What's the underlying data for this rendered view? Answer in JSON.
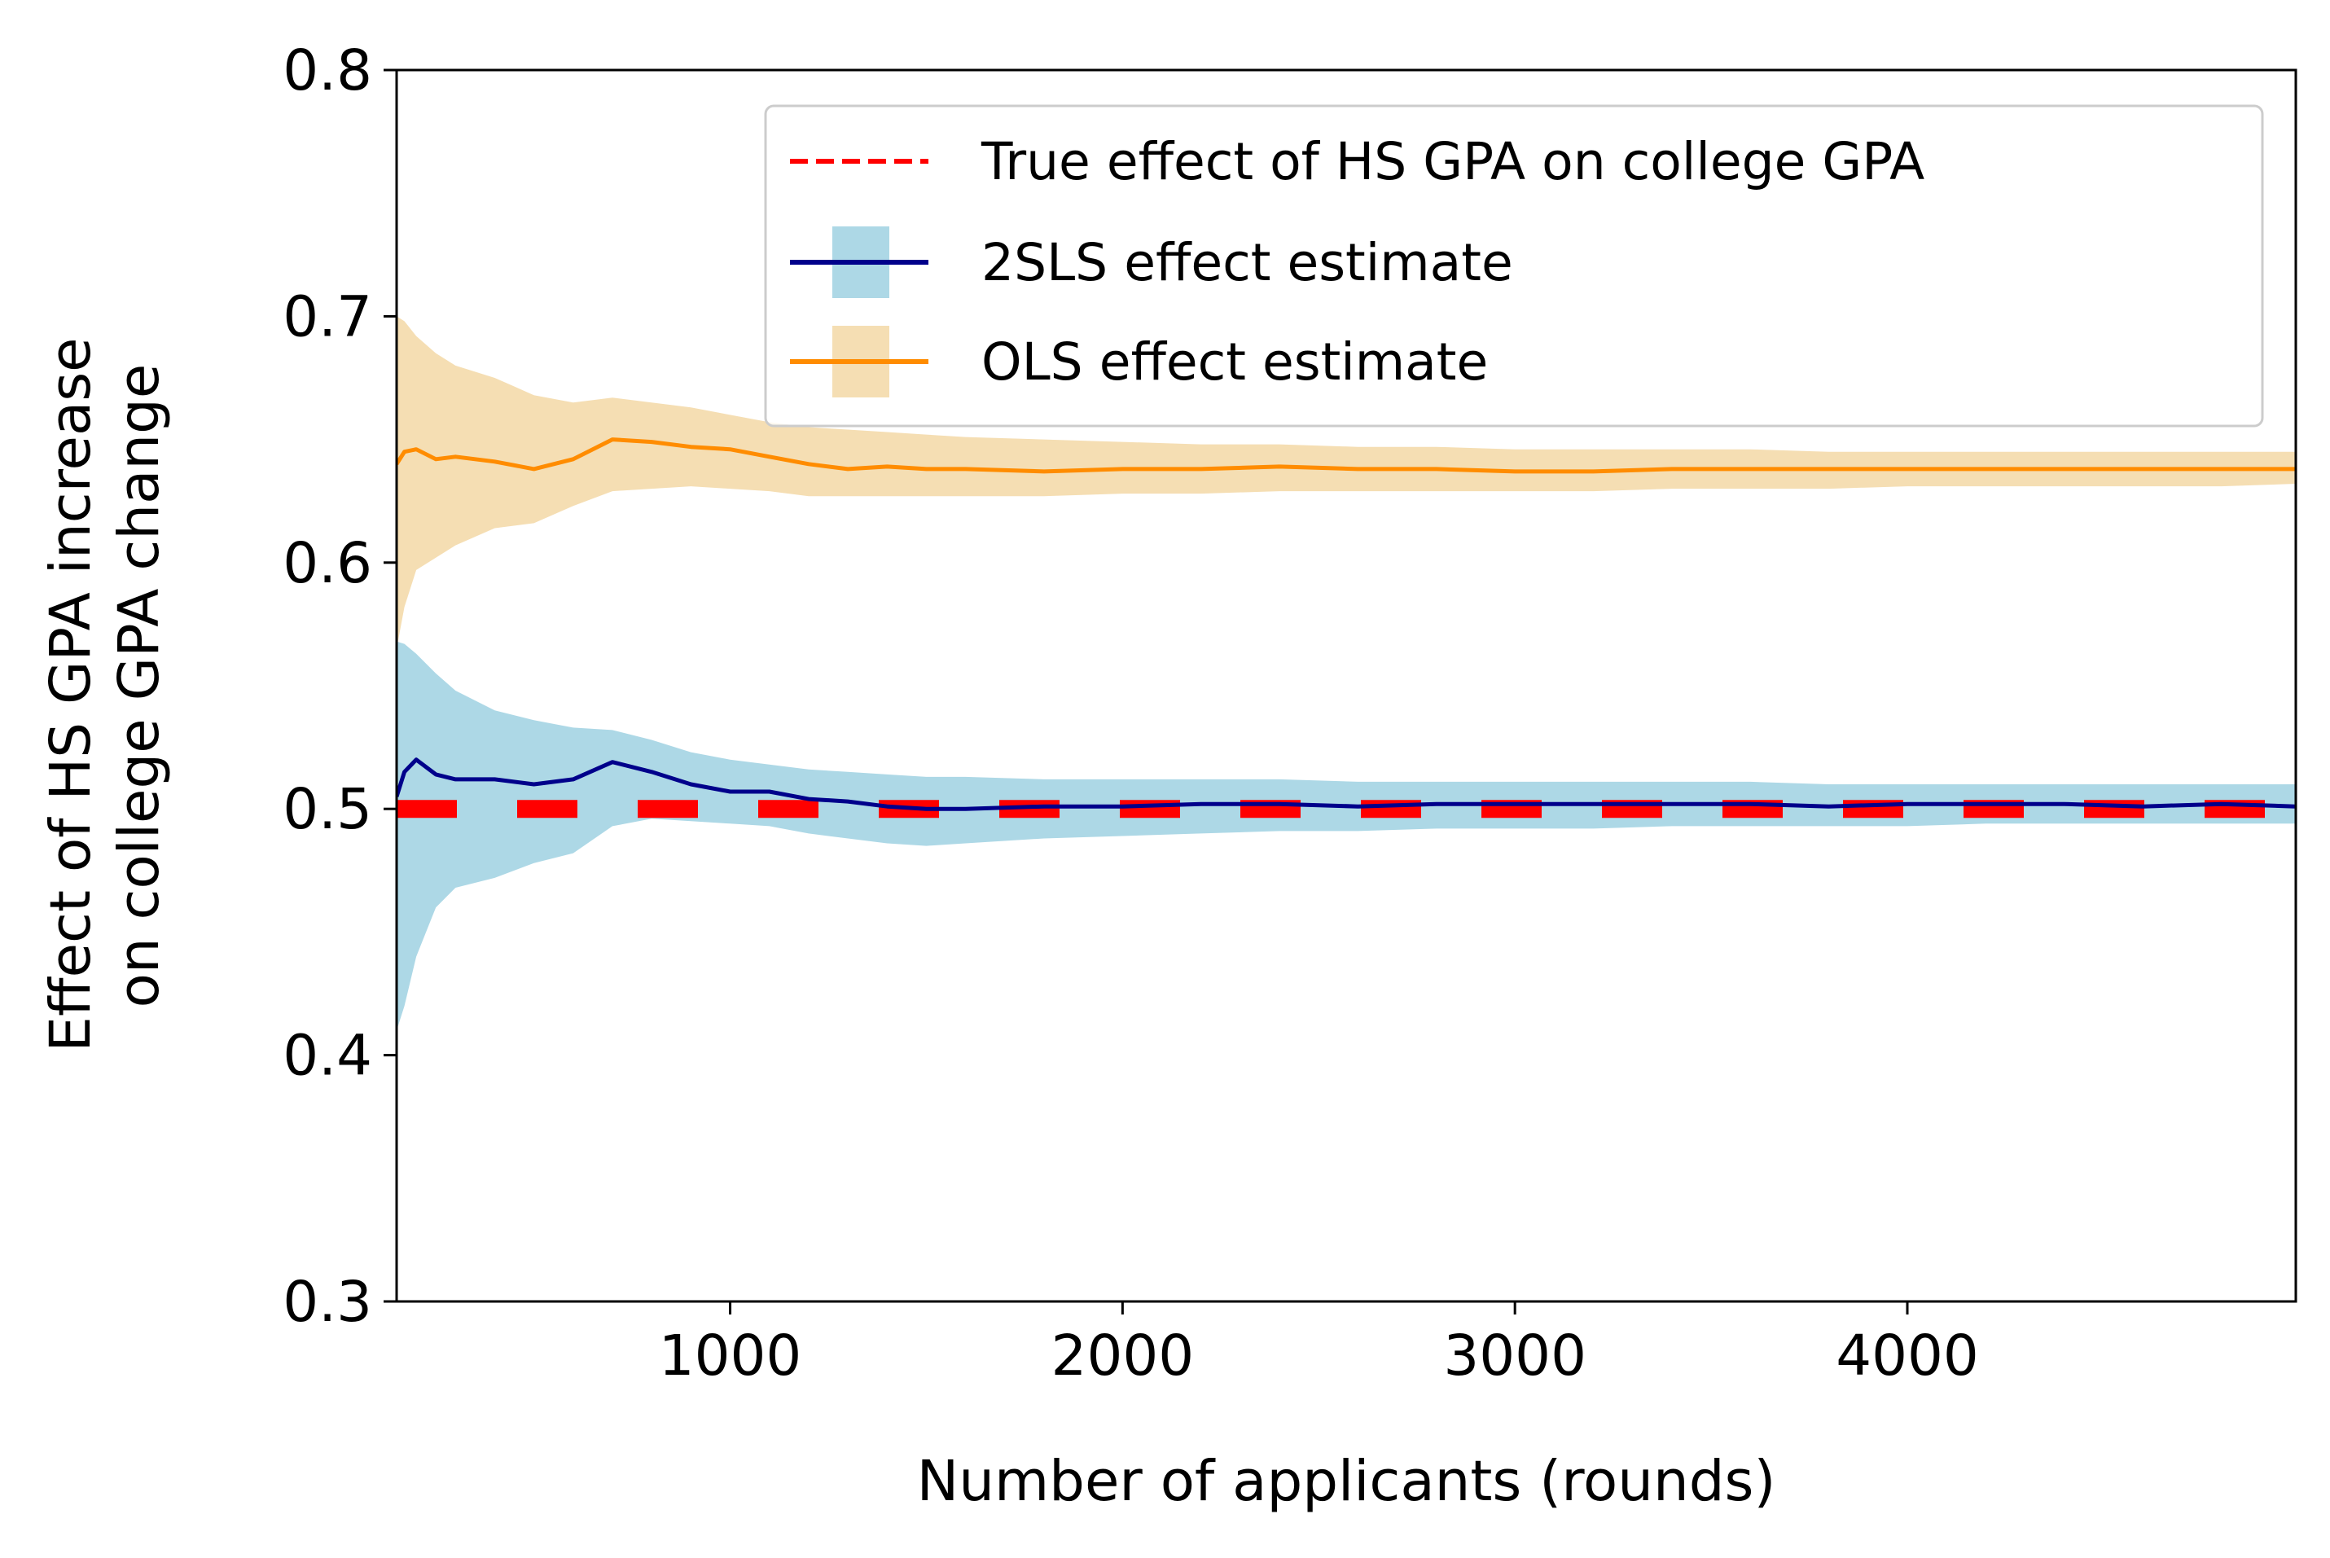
{
  "chart_data": {
    "type": "line",
    "title": "",
    "xlabel": "Number of applicants (rounds)",
    "ylabel": [
      "Effect of HS GPA increase",
      "on college GPA change"
    ],
    "xlim": [
      150,
      4990
    ],
    "ylim": [
      0.3,
      0.8
    ],
    "xticks": [
      1000,
      2000,
      3000,
      4000
    ],
    "yticks": [
      0.3,
      0.4,
      0.5,
      0.6,
      0.7,
      0.8
    ],
    "xtick_labels": [
      "1000",
      "2000",
      "3000",
      "4000"
    ],
    "ytick_labels": [
      "0.3",
      "0.4",
      "0.5",
      "0.6",
      "0.7",
      "0.8"
    ],
    "grid": false,
    "legend_position": "top-right",
    "legend": [
      "True effect of HS GPA on college GPA",
      "2SLS effect estimate",
      "OLS effect estimate"
    ],
    "reference_line": {
      "name": "True effect of HS GPA on college GPA",
      "value": 0.5,
      "style": "dashed",
      "color": "#ff0000"
    },
    "series": [
      {
        "name": "OLS effect estimate",
        "color": "#ff8c00",
        "band_color": "#f5deb3",
        "x": [
          150,
          170,
          200,
          250,
          300,
          400,
          500,
          600,
          700,
          800,
          900,
          1000,
          1100,
          1200,
          1300,
          1400,
          1500,
          1600,
          1800,
          2000,
          2200,
          2400,
          2600,
          2800,
          3000,
          3200,
          3400,
          3600,
          3800,
          4000,
          4200,
          4400,
          4600,
          4800,
          4990
        ],
        "values": [
          0.64,
          0.645,
          0.646,
          0.642,
          0.643,
          0.641,
          0.638,
          0.642,
          0.65,
          0.649,
          0.647,
          0.646,
          0.643,
          0.64,
          0.638,
          0.639,
          0.638,
          0.638,
          0.637,
          0.638,
          0.638,
          0.639,
          0.638,
          0.638,
          0.637,
          0.637,
          0.638,
          0.638,
          0.638,
          0.638,
          0.638,
          0.638,
          0.638,
          0.638,
          0.638
        ],
        "upper": [
          0.7,
          0.698,
          0.692,
          0.685,
          0.68,
          0.675,
          0.668,
          0.665,
          0.667,
          0.665,
          0.663,
          0.66,
          0.657,
          0.655,
          0.654,
          0.653,
          0.652,
          0.651,
          0.65,
          0.649,
          0.648,
          0.648,
          0.647,
          0.647,
          0.646,
          0.646,
          0.646,
          0.646,
          0.645,
          0.645,
          0.645,
          0.645,
          0.645,
          0.645,
          0.645
        ],
        "lower": [
          0.565,
          0.582,
          0.597,
          0.602,
          0.607,
          0.614,
          0.616,
          0.623,
          0.629,
          0.63,
          0.631,
          0.63,
          0.629,
          0.627,
          0.627,
          0.627,
          0.627,
          0.627,
          0.627,
          0.628,
          0.628,
          0.629,
          0.629,
          0.629,
          0.629,
          0.629,
          0.63,
          0.63,
          0.63,
          0.631,
          0.631,
          0.631,
          0.631,
          0.631,
          0.632
        ]
      },
      {
        "name": "2SLS effect estimate",
        "color": "#00008b",
        "band_color": "#add8e6",
        "x": [
          150,
          170,
          200,
          250,
          300,
          400,
          500,
          600,
          700,
          800,
          900,
          1000,
          1100,
          1200,
          1300,
          1400,
          1500,
          1600,
          1800,
          2000,
          2200,
          2400,
          2600,
          2800,
          3000,
          3200,
          3400,
          3600,
          3800,
          4000,
          4200,
          4400,
          4600,
          4800,
          4990
        ],
        "values": [
          0.505,
          0.515,
          0.52,
          0.514,
          0.512,
          0.512,
          0.51,
          0.512,
          0.519,
          0.515,
          0.51,
          0.507,
          0.507,
          0.504,
          0.503,
          0.501,
          0.5,
          0.5,
          0.501,
          0.501,
          0.502,
          0.502,
          0.501,
          0.502,
          0.502,
          0.502,
          0.502,
          0.502,
          0.501,
          0.502,
          0.502,
          0.502,
          0.501,
          0.502,
          0.501
        ],
        "upper": [
          0.568,
          0.567,
          0.563,
          0.555,
          0.548,
          0.54,
          0.536,
          0.533,
          0.532,
          0.528,
          0.523,
          0.52,
          0.518,
          0.516,
          0.515,
          0.514,
          0.513,
          0.513,
          0.512,
          0.512,
          0.512,
          0.512,
          0.511,
          0.511,
          0.511,
          0.511,
          0.511,
          0.511,
          0.51,
          0.51,
          0.51,
          0.51,
          0.51,
          0.51,
          0.51
        ],
        "lower": [
          0.41,
          0.42,
          0.44,
          0.46,
          0.468,
          0.472,
          0.478,
          0.482,
          0.493,
          0.496,
          0.495,
          0.494,
          0.493,
          0.49,
          0.488,
          0.486,
          0.485,
          0.486,
          0.488,
          0.489,
          0.49,
          0.491,
          0.491,
          0.492,
          0.492,
          0.492,
          0.493,
          0.493,
          0.493,
          0.493,
          0.494,
          0.494,
          0.494,
          0.494,
          0.494
        ]
      }
    ]
  }
}
